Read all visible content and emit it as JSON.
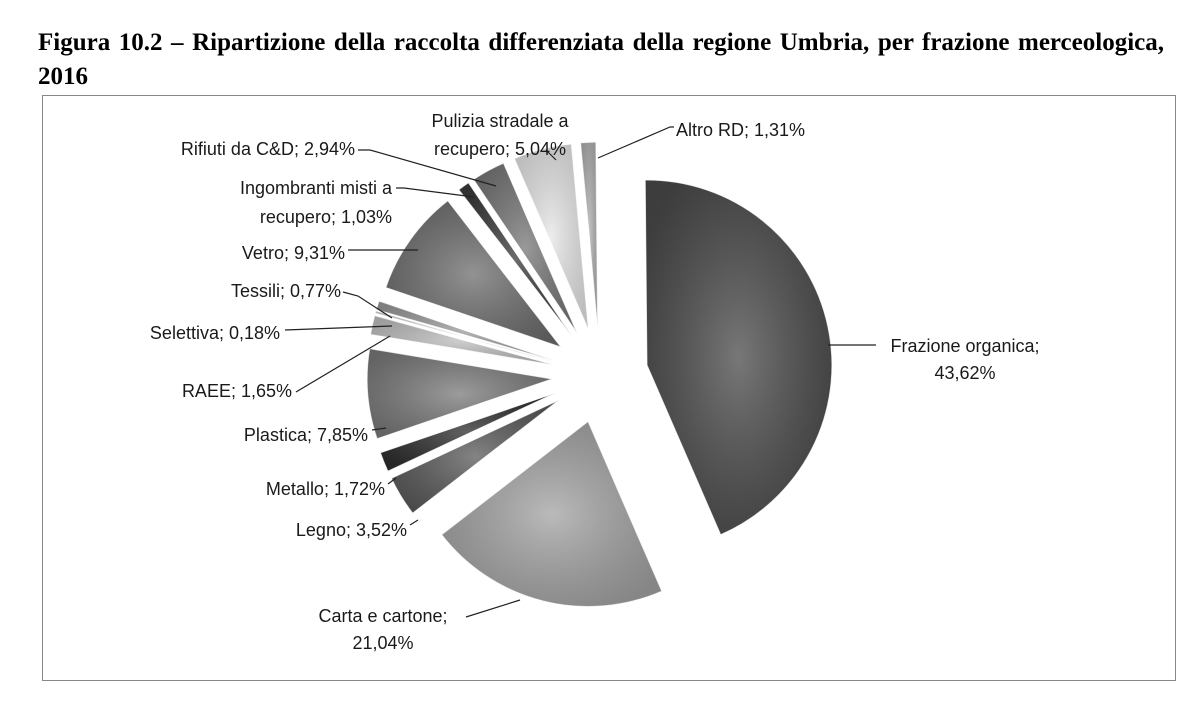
{
  "caption": "Figura 10.2 – Ripartizione della raccolta differenziata della regione Umbria, per frazione merceologica, 2016",
  "colors": {
    "frazione_organica": "#4a4a4a",
    "carta_cartone": "#a3a3a3",
    "legno": "#5a5a5a",
    "metallo": "#2e2e2e",
    "plastica": "#7a7a7a",
    "raee": "#bfbfbf",
    "selettiva": "#d0d0d0",
    "tessili": "#9a9a9a",
    "vetro": "#6e6e6e",
    "ingombranti": "#3a3a3a",
    "rifiuti_cd": "#777777",
    "pulizia": "#e6e6e6",
    "altro": "#b0b0b0"
  },
  "chart_data": {
    "type": "pie",
    "exploded": true,
    "slices": [
      {
        "key": "frazione_organica",
        "label": "Frazione organica;",
        "label2": "43,62%",
        "value": 43.62
      },
      {
        "key": "carta_cartone",
        "label": "Carta e cartone;",
        "label2": "21,04%",
        "value": 21.04
      },
      {
        "key": "legno",
        "label": "Legno; 3,52%",
        "label2": "",
        "value": 3.52
      },
      {
        "key": "metallo",
        "label": "Metallo; 1,72%",
        "label2": "",
        "value": 1.72
      },
      {
        "key": "plastica",
        "label": "Plastica; 7,85%",
        "label2": "",
        "value": 7.85
      },
      {
        "key": "raee",
        "label": "RAEE; 1,65%",
        "label2": "",
        "value": 1.65
      },
      {
        "key": "selettiva",
        "label": "Selettiva; 0,18%",
        "label2": "",
        "value": 0.18
      },
      {
        "key": "tessili",
        "label": "Tessili; 0,77%",
        "label2": "",
        "value": 0.77
      },
      {
        "key": "vetro",
        "label": "Vetro; 9,31%",
        "label2": "",
        "value": 9.31
      },
      {
        "key": "ingombranti",
        "label": "Ingombranti misti a",
        "label2": "recupero; 1,03%",
        "value": 1.03
      },
      {
        "key": "rifiuti_cd",
        "label": "Rifiuti da C&D; 2,94%",
        "label2": "",
        "value": 2.94
      },
      {
        "key": "pulizia",
        "label": "Pulizia stradale a",
        "label2": "recupero; 5,04%",
        "value": 5.04
      },
      {
        "key": "altro",
        "label": "Altro RD; 1,31%",
        "label2": "",
        "value": 1.31
      }
    ]
  }
}
